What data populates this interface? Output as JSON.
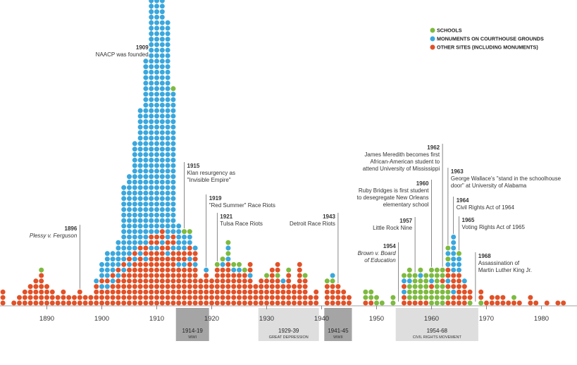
{
  "chart_data": {
    "type": "scatter",
    "subtype": "stacked dot plot (one dot per site, stacked by year)",
    "legend": [
      {
        "key": "S",
        "label": "SCHOOLS",
        "color": "#7dba3f"
      },
      {
        "key": "M",
        "label": "MONUMENTS ON COURTHOUSE GROUNDS",
        "color": "#3aa7dd"
      },
      {
        "key": "O",
        "label": "OTHER SITES (INCLUDING MONUMENTS)",
        "color": "#e25127"
      }
    ],
    "legend_position": "top-right",
    "x_ticks": [
      "1890",
      "1900",
      "1910",
      "1920",
      "1930",
      "1940",
      "1950",
      "1960",
      "1970",
      "1980"
    ],
    "xlim": [
      1882,
      1985
    ],
    "grid": false,
    "columns": [
      {
        "year": 1882,
        "stack": "OOO"
      },
      {
        "year": 1884,
        "stack": "O"
      },
      {
        "year": 1885,
        "stack": "OO"
      },
      {
        "year": 1886,
        "stack": "OOO"
      },
      {
        "year": 1887,
        "stack": "OOOO"
      },
      {
        "year": 1888,
        "stack": "OOOOO"
      },
      {
        "year": 1889,
        "stack": "OOOOOOS"
      },
      {
        "year": 1890,
        "stack": "OOOO"
      },
      {
        "year": 1891,
        "stack": "OOO"
      },
      {
        "year": 1892,
        "stack": "OO"
      },
      {
        "year": 1893,
        "stack": "OOO"
      },
      {
        "year": 1894,
        "stack": "OO"
      },
      {
        "year": 1895,
        "stack": "OO"
      },
      {
        "year": 1896,
        "stack": "OOO"
      },
      {
        "year": 1897,
        "stack": "OO"
      },
      {
        "year": 1898,
        "stack": "OO"
      },
      {
        "year": 1899,
        "stack": "OOOOM"
      },
      {
        "year": 1900,
        "stack": "OOOMOMMM"
      },
      {
        "year": 1901,
        "stack": "OOOMOMMMMM"
      },
      {
        "year": 1902,
        "stack": "OOOOMOMMMM"
      },
      {
        "year": 1903,
        "stack": "OOOOOMOMMMMM"
      },
      {
        "year": 1904,
        "stack": "OOOOOOMOMMMMMMMMMMMMMM"
      },
      {
        "year": 1905,
        "stack": "OOOOOOOMOMMMMMMMMMMMMMMM"
      },
      {
        "year": 1906,
        "stack": "OOOOOOOOMOMMMMMMMMMMMMMMMMMMMM"
      },
      {
        "year": 1907,
        "stack": "OOOOOOOOOMOMMMMMMMMMMMMMMMMMMMMMMMMM"
      },
      {
        "year": 1908,
        "stack": "OOOOOOOOMOOMMMMMMMMMMMMMMMMMMMMMMMMMMMMMMMMMM"
      },
      {
        "year": 1909,
        "stack": "OOOOOOOOOOMOOMMMMMMMMMMMMMMMMMMMMMMMMMMMMMMMMMMMMMMMMMMMMMMMMS"
      },
      {
        "year": 1910,
        "stack": "OOOOOOOOOOMOOMMMMMMMMMMMMMMMMMMMMMMMMMMMMMMMMMMMMMMMMMMMMMMMMMMMM"
      },
      {
        "year": 1911,
        "stack": "OOOOOOOOOOOMOOMMMMMMMMMMMMMMMMMMMMMMMMMMMMMMMMMMMMMMMMMMMMMMMMMMMMMMMMMMMMMMMMMMM"
      },
      {
        "year": 1912,
        "stack": "OOOOOOOOOMOOMMMMMMMMMMMMMMMMMMMMMMMMMMMMMMMMMMMMMMMM"
      },
      {
        "year": 1913,
        "stack": "OOOOOOOOOOMOOMMMMMMMMMMMMMMMMMMMMMMMMMMS"
      },
      {
        "year": 1914,
        "stack": "OOOOOOOMOOMMMMM"
      },
      {
        "year": 1915,
        "stack": "OOOOOOOMOOMMMS"
      },
      {
        "year": 1916,
        "stack": "OOOOOOOOMOOMMS"
      },
      {
        "year": 1917,
        "stack": "OOOOOOOMOOM"
      },
      {
        "year": 1918,
        "stack": "OOOOO"
      },
      {
        "year": 1919,
        "stack": "OOOOOOM"
      },
      {
        "year": 1920,
        "stack": "OOOOO"
      },
      {
        "year": 1921,
        "stack": "OOOOOOOS"
      },
      {
        "year": 1922,
        "stack": "OOOOOOOMS"
      },
      {
        "year": 1923,
        "stack": "OOOOOOOOMSMS"
      },
      {
        "year": 1924,
        "stack": "OOOOOOMS"
      },
      {
        "year": 1925,
        "stack": "OOOOOOMS"
      },
      {
        "year": 1926,
        "stack": "OOOOOOS"
      },
      {
        "year": 1927,
        "stack": "OOOOOMOO"
      },
      {
        "year": 1928,
        "stack": "OOOO"
      },
      {
        "year": 1929,
        "stack": "OOOOO"
      },
      {
        "year": 1930,
        "stack": "OOOOOS"
      },
      {
        "year": 1931,
        "stack": "OOOOOOO"
      },
      {
        "year": 1932,
        "stack": "OOOOOSOO"
      },
      {
        "year": 1933,
        "stack": "OOOOM"
      },
      {
        "year": 1934,
        "stack": "OOOOOOS"
      },
      {
        "year": 1935,
        "stack": "OOOO"
      },
      {
        "year": 1936,
        "stack": "OOOOOOOO"
      },
      {
        "year": 1937,
        "stack": "OOOOOS"
      },
      {
        "year": 1938,
        "stack": "OO"
      },
      {
        "year": 1939,
        "stack": "OOO"
      },
      {
        "year": 1941,
        "stack": "OOOOS"
      },
      {
        "year": 1942,
        "stack": "OOOOSM"
      },
      {
        "year": 1943,
        "stack": "OOOO"
      },
      {
        "year": 1944,
        "stack": "OOO"
      },
      {
        "year": 1945,
        "stack": "OO"
      },
      {
        "year": 1948,
        "stack": "OSS"
      },
      {
        "year": 1949,
        "stack": "OSS"
      },
      {
        "year": 1950,
        "stack": "SS"
      },
      {
        "year": 1951,
        "stack": "S"
      },
      {
        "year": 1953,
        "stack": "SS"
      },
      {
        "year": 1955,
        "stack": "OOMOMS"
      },
      {
        "year": 1956,
        "stack": "OSSSMSS"
      },
      {
        "year": 1957,
        "stack": "OSSSSS"
      },
      {
        "year": 1958,
        "stack": "OSSSSMS"
      },
      {
        "year": 1959,
        "stack": "OSSSSS"
      },
      {
        "year": 1960,
        "stack": "SSSOMSS"
      },
      {
        "year": 1961,
        "stack": "SSSSSSS"
      },
      {
        "year": 1962,
        "stack": "SSSSOSS"
      },
      {
        "year": 1963,
        "stack": "OSSOMOOMSMS"
      },
      {
        "year": 1964,
        "stack": "OOMOOOMMMMMMM"
      },
      {
        "year": 1965,
        "stack": "OOOOOOMMMS"
      },
      {
        "year": 1966,
        "stack": "OOOOM"
      },
      {
        "year": 1967,
        "stack": "SOO"
      },
      {
        "year": 1969,
        "stack": "SOO"
      },
      {
        "year": 1970,
        "stack": "O"
      },
      {
        "year": 1971,
        "stack": "OO"
      },
      {
        "year": 1972,
        "stack": "OO"
      },
      {
        "year": 1973,
        "stack": "OO"
      },
      {
        "year": 1974,
        "stack": "O"
      },
      {
        "year": 1975,
        "stack": "OS"
      },
      {
        "year": 1976,
        "stack": "O"
      },
      {
        "year": 1978,
        "stack": "OO"
      },
      {
        "year": 1979,
        "stack": "O"
      },
      {
        "year": 1981,
        "stack": "O"
      },
      {
        "year": 1983,
        "stack": "O"
      },
      {
        "year": 1984,
        "stack": "O"
      }
    ],
    "annotations": [
      {
        "year": 1896,
        "lines": [
          "Plessy v. Ferguson"
        ],
        "italic": true,
        "align": "end"
      },
      {
        "year": 1909,
        "lines": [
          "NAACP was founded"
        ],
        "italic": false,
        "align": "end"
      },
      {
        "year": 1915,
        "lines": [
          "Klan resurgency as",
          "\"Invisible Empire\""
        ],
        "italic": false,
        "align": "start"
      },
      {
        "year": 1919,
        "lines": [
          "\"Red Summer\" Race Riots"
        ],
        "italic": false,
        "align": "start"
      },
      {
        "year": 1921,
        "lines": [
          "Tulsa Race Riots"
        ],
        "italic": false,
        "align": "start"
      },
      {
        "year": 1943,
        "lines": [
          "Detroit Race Riots"
        ],
        "italic": false,
        "align": "end"
      },
      {
        "year": 1954,
        "lines": [
          "Brown v. Board",
          "of Education"
        ],
        "italic": true,
        "align": "end"
      },
      {
        "year": 1957,
        "lines": [
          "Little Rock Nine"
        ],
        "italic": false,
        "align": "end"
      },
      {
        "year": 1960,
        "lines": [
          "Ruby Bridges is first student",
          "to desegregate New Orleans",
          "elementary school"
        ],
        "italic": false,
        "align": "end"
      },
      {
        "year": 1962,
        "lines": [
          "James Meredith becomes first",
          "African-American student to",
          "attend University of Mississippi"
        ],
        "italic": false,
        "align": "end"
      },
      {
        "year": 1963,
        "lines": [
          "George Wallace's \"stand in the schoolhouse",
          "door\" at University of Alabama"
        ],
        "italic": false,
        "align": "start"
      },
      {
        "year": 1964,
        "lines": [
          "Civil Rights Act of 1964"
        ],
        "italic": false,
        "align": "start"
      },
      {
        "year": 1965,
        "lines": [
          "Voting Rights Act of 1965"
        ],
        "italic": false,
        "align": "start"
      },
      {
        "year": 1968,
        "lines": [
          "Assassination of",
          "Martin Luther King Jr."
        ],
        "italic": false,
        "align": "start"
      }
    ],
    "periods": [
      {
        "start": 1914,
        "end": 1919,
        "years": "1914-19",
        "label": "WWI",
        "fill": "#a5a5a5"
      },
      {
        "start": 1929,
        "end": 1939,
        "years": "1929-39",
        "label": "GREAT DEPRESSION",
        "fill": "#dedede"
      },
      {
        "start": 1941,
        "end": 1945,
        "years": "1941-45",
        "label": "WWII",
        "fill": "#a5a5a5"
      },
      {
        "start": 1954,
        "end": 1968,
        "years": "1954-68",
        "label": "CIVIL RIGHTS MOVEMENT",
        "fill": "#dedede"
      }
    ]
  }
}
